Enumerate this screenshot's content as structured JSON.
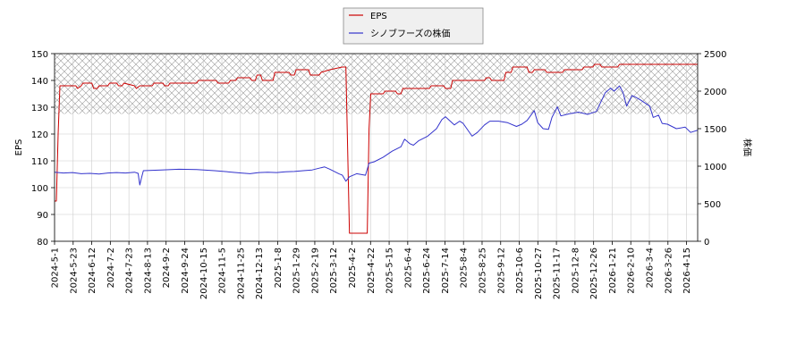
{
  "chart_data": {
    "type": "line",
    "legend": {
      "placement": "top-center",
      "entries": [
        "EPS",
        "シノブフーズの株価"
      ]
    },
    "colors": {
      "eps": "#cc0000",
      "price": "#3333cc",
      "band": "#999999"
    },
    "y_left": {
      "label": "EPS",
      "range": [
        80,
        150
      ],
      "ticks": [
        "150",
        "140",
        "130",
        "120",
        "110",
        "100",
        "90",
        "80"
      ]
    },
    "y_right": {
      "label": "株価",
      "range": [
        0,
        2500
      ],
      "ticks": [
        "2500",
        "2000",
        "1500",
        "1000",
        "500",
        "0"
      ]
    },
    "x_ticks": [
      "2024-5-1",
      "2024-5-23",
      "2024-6-12",
      "2024-7-2",
      "2024-7-23",
      "2024-8-13",
      "2024-9-2",
      "2024-9-24",
      "2024-10-15",
      "2024-11-5",
      "2024-11-25",
      "2024-12-13",
      "2025-1-8",
      "2025-1-29",
      "2025-2-19",
      "2025-3-12",
      "2025-4-2",
      "2025-4-22",
      "2025-5-15",
      "2025-6-4",
      "2025-6-24",
      "2025-7-14",
      "2025-8-4",
      "2025-8-25",
      "2025-9-12",
      "2025-10-6",
      "2025-10-27",
      "2025-11-17",
      "2025-12-8",
      "2025-12-26",
      "2026-1-21",
      "2026-2-10",
      "2026-3-4",
      "2026-3-26",
      "2026-4-15"
    ],
    "x_range_days": [
      0,
      362
    ],
    "shaded_band_eps": [
      127.5,
      150
    ],
    "grid": true,
    "series": [
      {
        "name": "EPS",
        "axis": "left",
        "points": [
          [
            0,
            95
          ],
          [
            1,
            95
          ],
          [
            2,
            120
          ],
          [
            3,
            138
          ],
          [
            4,
            138
          ],
          [
            12,
            138
          ],
          [
            13,
            137
          ],
          [
            15,
            138
          ],
          [
            16,
            139
          ],
          [
            21,
            139
          ],
          [
            22,
            137
          ],
          [
            24,
            137
          ],
          [
            25,
            138
          ],
          [
            30,
            138
          ],
          [
            31,
            139
          ],
          [
            35,
            139
          ],
          [
            36,
            138
          ],
          [
            38,
            138
          ],
          [
            39,
            139
          ],
          [
            45,
            138
          ],
          [
            46,
            137
          ],
          [
            48,
            138
          ],
          [
            49,
            138
          ],
          [
            55,
            138
          ],
          [
            56,
            139
          ],
          [
            61,
            139
          ],
          [
            62,
            138
          ],
          [
            64,
            138
          ],
          [
            65,
            139
          ],
          [
            80,
            139
          ],
          [
            81,
            140
          ],
          [
            91,
            140
          ],
          [
            92,
            139
          ],
          [
            98,
            139
          ],
          [
            99,
            140
          ],
          [
            102,
            140
          ],
          [
            103,
            141
          ],
          [
            110,
            141
          ],
          [
            111,
            140
          ],
          [
            113,
            140
          ],
          [
            114,
            142
          ],
          [
            116,
            142
          ],
          [
            117,
            140
          ],
          [
            123,
            140
          ],
          [
            124,
            143
          ],
          [
            132,
            143
          ],
          [
            133,
            142
          ],
          [
            135,
            142
          ],
          [
            136,
            144
          ],
          [
            143,
            144
          ],
          [
            144,
            142
          ],
          [
            149,
            142
          ],
          [
            150,
            143
          ],
          [
            155,
            144
          ],
          [
            162,
            145
          ],
          [
            164,
            145
          ],
          [
            165,
            114
          ],
          [
            166,
            83
          ],
          [
            176,
            83
          ],
          [
            177,
            122
          ],
          [
            178,
            135
          ],
          [
            185,
            135
          ],
          [
            186,
            136
          ],
          [
            192,
            136
          ],
          [
            193,
            135
          ],
          [
            195,
            135
          ],
          [
            196,
            137
          ],
          [
            211,
            137
          ],
          [
            212,
            138
          ],
          [
            219,
            138
          ],
          [
            220,
            137
          ],
          [
            223,
            137
          ],
          [
            224,
            140
          ],
          [
            242,
            140
          ],
          [
            243,
            141
          ],
          [
            245,
            141
          ],
          [
            246,
            140
          ],
          [
            253,
            140
          ],
          [
            254,
            143
          ],
          [
            257,
            143
          ],
          [
            258,
            145
          ],
          [
            266,
            145
          ],
          [
            267,
            143
          ],
          [
            269,
            143
          ],
          [
            270,
            144
          ],
          [
            276,
            144
          ],
          [
            277,
            143
          ],
          [
            286,
            143
          ],
          [
            287,
            144
          ],
          [
            297,
            144
          ],
          [
            298,
            145
          ],
          [
            303,
            145
          ],
          [
            304,
            146
          ],
          [
            307,
            146
          ],
          [
            308,
            145
          ],
          [
            317,
            145
          ],
          [
            318,
            146
          ],
          [
            362,
            146
          ]
        ]
      },
      {
        "name": "シノブフーズの株価",
        "axis": "right",
        "points": [
          [
            0,
            920
          ],
          [
            5,
            910
          ],
          [
            10,
            915
          ],
          [
            15,
            900
          ],
          [
            20,
            905
          ],
          [
            25,
            895
          ],
          [
            30,
            910
          ],
          [
            35,
            915
          ],
          [
            40,
            910
          ],
          [
            45,
            920
          ],
          [
            47,
            905
          ],
          [
            48,
            750
          ],
          [
            49,
            850
          ],
          [
            50,
            940
          ],
          [
            60,
            950
          ],
          [
            70,
            960
          ],
          [
            80,
            955
          ],
          [
            90,
            940
          ],
          [
            100,
            920
          ],
          [
            105,
            910
          ],
          [
            110,
            900
          ],
          [
            115,
            915
          ],
          [
            120,
            920
          ],
          [
            125,
            915
          ],
          [
            130,
            925
          ],
          [
            135,
            930
          ],
          [
            140,
            940
          ],
          [
            145,
            950
          ],
          [
            150,
            980
          ],
          [
            152,
            990
          ],
          [
            155,
            960
          ],
          [
            160,
            900
          ],
          [
            162,
            880
          ],
          [
            164,
            800
          ],
          [
            166,
            860
          ],
          [
            170,
            900
          ],
          [
            175,
            880
          ],
          [
            177,
            1040
          ],
          [
            180,
            1060
          ],
          [
            185,
            1120
          ],
          [
            190,
            1200
          ],
          [
            195,
            1260
          ],
          [
            197,
            1360
          ],
          [
            200,
            1300
          ],
          [
            202,
            1280
          ],
          [
            205,
            1340
          ],
          [
            210,
            1400
          ],
          [
            215,
            1500
          ],
          [
            218,
            1620
          ],
          [
            220,
            1660
          ],
          [
            225,
            1550
          ],
          [
            228,
            1600
          ],
          [
            230,
            1570
          ],
          [
            235,
            1400
          ],
          [
            238,
            1450
          ],
          [
            242,
            1550
          ],
          [
            245,
            1600
          ],
          [
            250,
            1600
          ],
          [
            255,
            1580
          ],
          [
            260,
            1530
          ],
          [
            263,
            1560
          ],
          [
            266,
            1610
          ],
          [
            270,
            1740
          ],
          [
            272,
            1580
          ],
          [
            275,
            1500
          ],
          [
            278,
            1490
          ],
          [
            280,
            1650
          ],
          [
            283,
            1790
          ],
          [
            285,
            1670
          ],
          [
            290,
            1700
          ],
          [
            295,
            1720
          ],
          [
            300,
            1690
          ],
          [
            305,
            1730
          ],
          [
            310,
            1980
          ],
          [
            313,
            2040
          ],
          [
            315,
            2000
          ],
          [
            318,
            2070
          ],
          [
            320,
            1980
          ],
          [
            322,
            1800
          ],
          [
            325,
            1940
          ],
          [
            327,
            1920
          ],
          [
            330,
            1880
          ],
          [
            335,
            1800
          ],
          [
            337,
            1650
          ],
          [
            340,
            1680
          ],
          [
            342,
            1570
          ],
          [
            345,
            1560
          ],
          [
            350,
            1500
          ],
          [
            355,
            1520
          ],
          [
            358,
            1450
          ],
          [
            362,
            1480
          ]
        ]
      }
    ]
  }
}
